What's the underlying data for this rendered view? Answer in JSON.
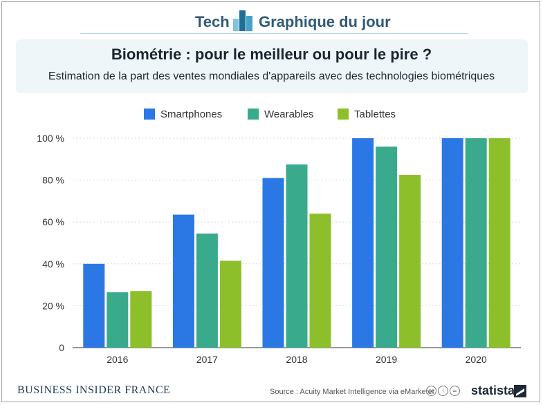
{
  "header": {
    "left_label": "Tech",
    "right_label": "Graphique du jour",
    "logo_icon": "bar-chart-logo-icon"
  },
  "title": "Biométrie : pour le meilleur ou pour le pire ?",
  "subtitle": "Estimation de la part des ventes mondiales d'appareils avec des technologies biométriques",
  "colors": {
    "smartphones": "#2b78e4",
    "wearables": "#3aaa8c",
    "tablettes": "#8dbf2b",
    "header_text": "#2f5a78"
  },
  "chart_data": {
    "type": "bar",
    "categories": [
      "2016",
      "2017",
      "2018",
      "2019",
      "2020"
    ],
    "series": [
      {
        "name": "Smartphones",
        "values": [
          40,
          63.5,
          81,
          100,
          100
        ]
      },
      {
        "name": "Wearables",
        "values": [
          26.5,
          54.5,
          87.5,
          96,
          100
        ]
      },
      {
        "name": "Tablettes",
        "values": [
          27,
          41.5,
          64,
          82.5,
          100
        ]
      }
    ],
    "yticks": [
      "0",
      "20 %",
      "40 %",
      "60 %",
      "80 %",
      "100 %"
    ],
    "ylim": [
      0,
      100
    ],
    "grid": true,
    "legend_position": "top-center"
  },
  "footer": {
    "publisher": "BUSINESS INSIDER FRANCE",
    "source": "Source : Acuity Market Intelligence via eMarketer",
    "cc_icons": [
      "cc",
      "i",
      "="
    ],
    "brand": "statista"
  }
}
